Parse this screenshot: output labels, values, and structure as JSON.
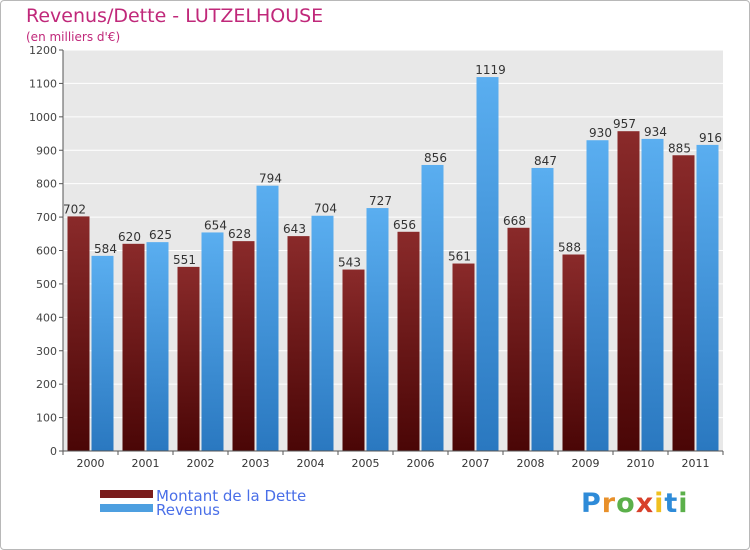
{
  "header": {
    "title": "Revenus/Dette - LUTZELHOUSE",
    "subtitle": "(en milliers d'€)"
  },
  "chart_data": {
    "type": "bar",
    "title": "Revenus/Dette - LUTZELHOUSE",
    "subtitle": "(en milliers d'€)",
    "categories": [
      "2000",
      "2001",
      "2002",
      "2003",
      "2004",
      "2005",
      "2006",
      "2007",
      "2008",
      "2009",
      "2010",
      "2011"
    ],
    "series": [
      {
        "name": "Montant de la Dette",
        "values": [
          702,
          620,
          551,
          628,
          643,
          543,
          656,
          561,
          668,
          588,
          957,
          885
        ],
        "color": "#7a1c1c"
      },
      {
        "name": "Revenus",
        "values": [
          584,
          625,
          654,
          794,
          704,
          727,
          856,
          1119,
          847,
          930,
          934,
          916
        ],
        "color": "#4d9fe0"
      }
    ],
    "ylim": [
      0,
      1200
    ],
    "yticks": [
      0,
      100,
      200,
      300,
      400,
      500,
      600,
      700,
      800,
      900,
      1000,
      1100,
      1200
    ],
    "grid": true,
    "legend": "bottom-left",
    "background": "#e8e8e8"
  },
  "legend": {
    "items": [
      {
        "label": "Montant de la Dette",
        "color": "#7a1c1c"
      },
      {
        "label": "Revenus",
        "color": "#4d9fe0"
      }
    ]
  },
  "logo": {
    "letters": [
      "P",
      "r",
      "o",
      "x",
      "i",
      "t",
      "i"
    ],
    "colors": [
      "#2e8bd8",
      "#e8902a",
      "#5bb04a",
      "#d8402a",
      "#f0c020",
      "#2e8bd8",
      "#5bb04a"
    ]
  }
}
